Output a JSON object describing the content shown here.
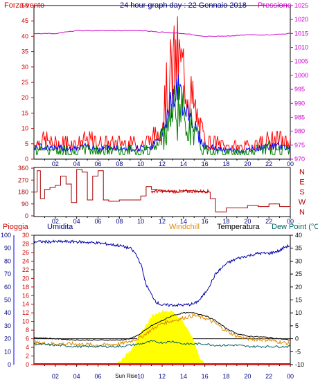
{
  "title": "24 hour graph day : 22 Gennaio 2018",
  "panel1": {
    "left_label": "Forza vento",
    "right_label": "Pressione",
    "left_ticks": [
      "0",
      "5",
      "10",
      "15",
      "20",
      "25",
      "30",
      "35",
      "40",
      "45",
      "50"
    ],
    "right_ticks": [
      "970",
      "975",
      "980",
      "985",
      "990",
      "995",
      "1000",
      "1005",
      "1010",
      "1015",
      "1020",
      "1025"
    ]
  },
  "panel2": {
    "left_ticks": [
      "0",
      "90",
      "180",
      "270",
      "360"
    ],
    "right_ticks": [
      "N",
      "W",
      "S",
      "E",
      "N"
    ],
    "right_label": "N"
  },
  "panel3": {
    "labels": {
      "rain": "Pioggia",
      "humidity": "Umidita",
      "windchill": "Windchill",
      "temperature": "Temperatura",
      "dewpoint": "Dew Point (°C"
    },
    "humidity_ticks": [
      "0",
      "10",
      "20",
      "30",
      "40",
      "50",
      "60",
      "70",
      "80",
      "90",
      "100"
    ],
    "rain_ticks": [
      "0",
      "2",
      "4",
      "6",
      "8",
      "10",
      "12",
      "14",
      "16",
      "18",
      "20",
      "22",
      "24",
      "26",
      "28",
      "30"
    ],
    "temp_ticks": [
      "-10",
      "-5",
      "0",
      "5",
      "10",
      "15",
      "20",
      "25",
      "30",
      "35",
      "40"
    ],
    "sun_label": "Sun Rise"
  },
  "x_labels": [
    "02",
    "04",
    "06",
    "08",
    "10",
    "12",
    "14",
    "16",
    "18",
    "20",
    "22",
    "00"
  ],
  "colors": {
    "gust": "#ff0000",
    "avg_wind": "#008000",
    "wind_blue": "#0000ff",
    "pressure": "#cc00cc",
    "direction": "#aa0000",
    "humidity": "#0000aa",
    "temperature": "#000000",
    "windchill": "#e08a00",
    "dewpoint": "#006060",
    "solar": "#ffff00",
    "rain": "#ff0000"
  },
  "chart_data": [
    {
      "type": "line",
      "title": "24 hour graph day : 22 Gennaio 2018",
      "series": [
        {
          "name": "Forza vento",
          "x": [
            0,
            1,
            2,
            3,
            4,
            5,
            6,
            7,
            8,
            9,
            10,
            11,
            11.5,
            12,
            12.5,
            13,
            13.5,
            14,
            14.5,
            15,
            15.5,
            16,
            17,
            18,
            19,
            20,
            21,
            22,
            23,
            24
          ],
          "values": [
            5,
            6,
            5,
            5,
            5,
            6,
            5,
            5,
            5,
            5,
            5,
            6,
            8,
            12,
            22,
            28,
            31,
            27,
            22,
            16,
            10,
            6,
            5,
            4,
            4,
            4,
            5,
            6,
            6,
            5
          ]
        },
        {
          "name": "Pressione",
          "x": [
            0,
            2,
            4,
            6,
            8,
            10,
            12,
            14,
            16,
            18,
            20,
            22,
            24
          ],
          "values": [
            1015,
            1015,
            1016,
            1016,
            1016,
            1016,
            1015.5,
            1015,
            1014,
            1014,
            1014.5,
            1014.5,
            1015
          ]
        }
      ],
      "ylim_left": [
        0,
        50
      ],
      "ylim_right": [
        970,
        1025
      ]
    },
    {
      "type": "line",
      "series": [
        {
          "name": "direction",
          "x": [
            0,
            0.3,
            0.6,
            1,
            1.5,
            2,
            2.5,
            3,
            3.5,
            4,
            4.5,
            5,
            5.5,
            6,
            6.5,
            7,
            8,
            9,
            10,
            10.5,
            11,
            11.5,
            12,
            13,
            14,
            15,
            16,
            16.5,
            17,
            18,
            19,
            20,
            21,
            22,
            23,
            24
          ],
          "values": [
            180,
            340,
            130,
            200,
            215,
            230,
            300,
            240,
            100,
            350,
            330,
            120,
            300,
            340,
            120,
            110,
            120,
            120,
            150,
            220,
            200,
            195,
            185,
            180,
            190,
            185,
            180,
            130,
            30,
            60,
            60,
            80,
            70,
            90,
            70,
            60
          ]
        }
      ],
      "ylim": [
        0,
        360
      ]
    },
    {
      "type": "line",
      "series": [
        {
          "name": "Umidita",
          "x": [
            0,
            2,
            4,
            6,
            7,
            8,
            9,
            9.5,
            10,
            10.5,
            11,
            11.5,
            12,
            13,
            14,
            15,
            15.5,
            16,
            16.5,
            17,
            18,
            19,
            20,
            21,
            22,
            23,
            23.5,
            24
          ],
          "values": [
            95,
            95,
            95,
            94,
            93,
            92,
            90,
            86,
            78,
            62,
            54,
            48,
            46,
            46,
            46,
            47,
            50,
            55,
            62,
            70,
            78,
            82,
            84,
            86,
            86,
            88,
            91,
            92
          ]
        },
        {
          "name": "Temperatura",
          "x": [
            0,
            2,
            4,
            6,
            8,
            9,
            10,
            11,
            12,
            13,
            14,
            15,
            16,
            17,
            18,
            19,
            20,
            22,
            24
          ],
          "values": [
            0.5,
            0,
            -0.5,
            -0.5,
            -0.5,
            0,
            2,
            5,
            7,
            9,
            10,
            10,
            9,
            7,
            4,
            2,
            1,
            0.5,
            -0.5
          ]
        },
        {
          "name": "Windchill",
          "x": [
            0,
            2,
            4,
            6,
            8,
            9,
            10,
            11,
            12,
            13,
            14,
            15,
            16,
            17,
            18,
            19,
            20,
            22,
            24
          ],
          "values": [
            -1.5,
            -2,
            -2,
            -2.5,
            -2,
            -1,
            0.5,
            3.5,
            6,
            7,
            8,
            9,
            8,
            6,
            3,
            1,
            0,
            -0.5,
            -2
          ]
        },
        {
          "name": "Dew Point (°C",
          "x": [
            0,
            2,
            4,
            6,
            8,
            9,
            10,
            11,
            12,
            13,
            14,
            15,
            16,
            17,
            18,
            19,
            20,
            22,
            24
          ],
          "values": [
            -2,
            -2.5,
            -3,
            -3,
            -3,
            -2.5,
            -2,
            -1,
            -1.5,
            -1,
            -2,
            -2,
            -2,
            -2.5,
            -2.5,
            -2.5,
            -3,
            -3,
            -3
          ]
        },
        {
          "name": "solar",
          "x": [
            7.5,
            8,
            9,
            10,
            11,
            12,
            13,
            14,
            15,
            15.5,
            16
          ],
          "values": [
            0,
            4,
            18,
            40,
            62,
            70,
            68,
            55,
            30,
            10,
            0
          ]
        },
        {
          "name": "Pioggia",
          "x": [
            0,
            24
          ],
          "values": [
            0,
            0
          ]
        }
      ],
      "ylim_humidity": [
        0,
        100
      ],
      "ylim_rain": [
        0,
        30
      ],
      "ylim_temp": [
        -10,
        40
      ]
    }
  ]
}
